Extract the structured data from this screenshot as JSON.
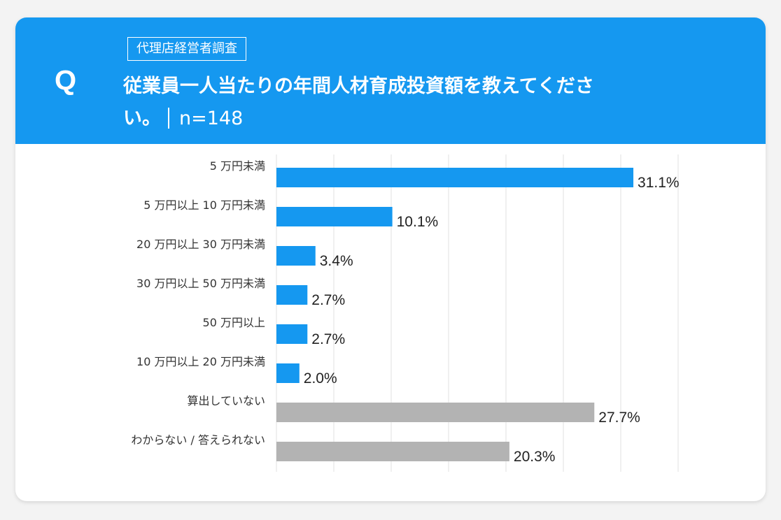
{
  "header": {
    "q_mark": "Q",
    "tag": "代理店経営者調査",
    "question": "従業員一人当たりの年間人材育成投資額を教えてください。",
    "n_label": "n=148"
  },
  "colors": {
    "header_bg": "#1598f0",
    "bar_blue": "#1598f0",
    "bar_gray": "#b3b3b3",
    "grid": "#e0e0e0"
  },
  "chart_data": {
    "type": "bar",
    "orientation": "horizontal",
    "categories": [
      "5 万円未満",
      "5 万円以上 10 万円未満",
      "20 万円以上 30 万円未満",
      "30 万円以上 50 万円未満",
      "50 万円以上",
      "10 万円以上 20 万円未満",
      "算出していない",
      "わからない / 答えられない"
    ],
    "values": [
      31.1,
      10.1,
      3.4,
      2.7,
      2.7,
      2.0,
      27.7,
      20.3
    ],
    "value_labels": [
      "31.1%",
      "10.1%",
      "3.4%",
      "2.7%",
      "2.7%",
      "2.0%",
      "27.7%",
      "20.3%"
    ],
    "bar_colors": [
      "#1598f0",
      "#1598f0",
      "#1598f0",
      "#1598f0",
      "#1598f0",
      "#1598f0",
      "#b3b3b3",
      "#b3b3b3"
    ],
    "xlim": [
      0,
      35
    ],
    "grid_step": 5,
    "grid": true,
    "title": "",
    "xlabel": "",
    "ylabel": ""
  }
}
